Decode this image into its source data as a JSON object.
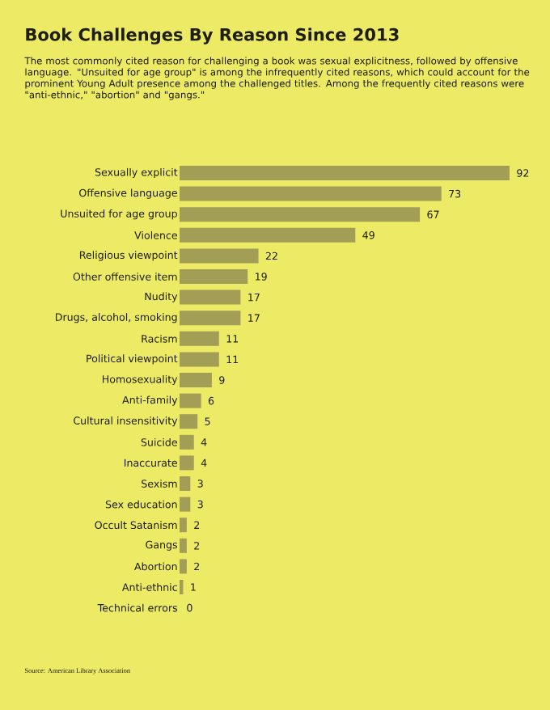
{
  "chart_data": {
    "type": "bar",
    "orientation": "horizontal",
    "title": "Book Challenges By Reason Since 2013",
    "subtitle": "The most commonly cited reason for challenging a book was sexual explicitness, followed by offensive language. \"Unsuited for age group\" is among the infrequently cited reasons, which could account for the prominent Young Adult presence among the challenged titles. Among the frequently cited reasons were \"anti-ethnic,\" \"abortion\" and \"gangs.\"",
    "categories": [
      "Sexually explicit",
      "Offensive language",
      "Unsuited for age group",
      "Violence",
      "Religious viewpoint",
      "Other offensive item",
      "Nudity",
      "Drugs, alcohol, smoking",
      "Racism",
      "Political viewpoint",
      "Homosexuality",
      "Anti-family",
      "Cultural insensitivity",
      "Suicide",
      "Inaccurate",
      "Sexism",
      "Sex education",
      "Occult Satanism",
      "Gangs",
      "Abortion",
      "Anti-ethnic",
      "Technical errors"
    ],
    "values": [
      92,
      73,
      67,
      49,
      22,
      19,
      17,
      17,
      11,
      11,
      9,
      6,
      5,
      4,
      4,
      3,
      3,
      2,
      2,
      2,
      1,
      0
    ],
    "color": "#a29e55",
    "data_labels": true,
    "annotations": [
      "Source: American Library Association"
    ]
  }
}
